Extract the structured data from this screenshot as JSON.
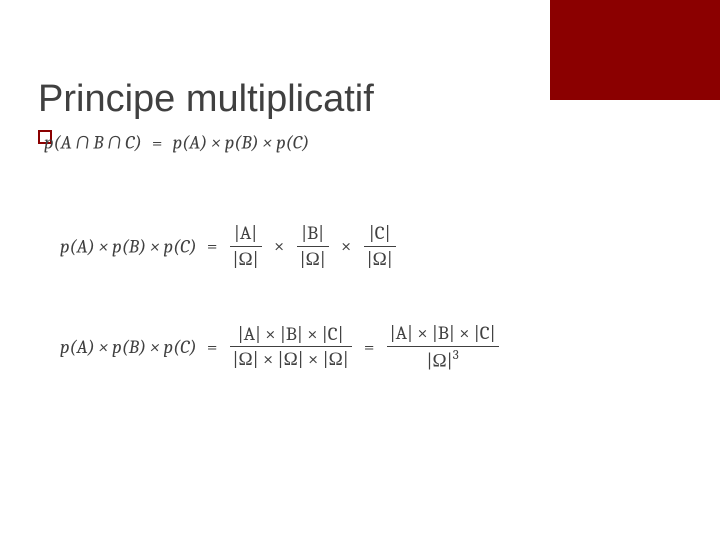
{
  "colors": {
    "accent": "#8b0000",
    "text": "#404040",
    "background": "#ffffff"
  },
  "title": "Principe multiplicatif",
  "typography": {
    "title_fontsize": 38,
    "math_fontsize": 19,
    "math_font": "Cambria"
  },
  "equations": {
    "eq1": {
      "lhs": "p(A ∩ B ∩ C)",
      "eq": "=",
      "rhs": "p(A) × p(B) × p(C)"
    },
    "eq2": {
      "lhs": "p(A) × p(B) × p(C)",
      "eq": "=",
      "f1_num": "|A|",
      "f1_den": "|Ω|",
      "times": "×",
      "f2_num": "|B|",
      "f2_den": "|Ω|",
      "f3_num": "|C|",
      "f3_den": "|Ω|"
    },
    "eq3": {
      "lhs": "p(A) × p(B) × p(C)",
      "eq": "=",
      "f1_num": "|A| × |B| × |C|",
      "f1_den": "|Ω| × |Ω| × |Ω|",
      "eq2": "=",
      "f2_num": "|A| × |B| × |C|",
      "f2_den_base": "|Ω|",
      "f2_den_exp": "3"
    }
  }
}
